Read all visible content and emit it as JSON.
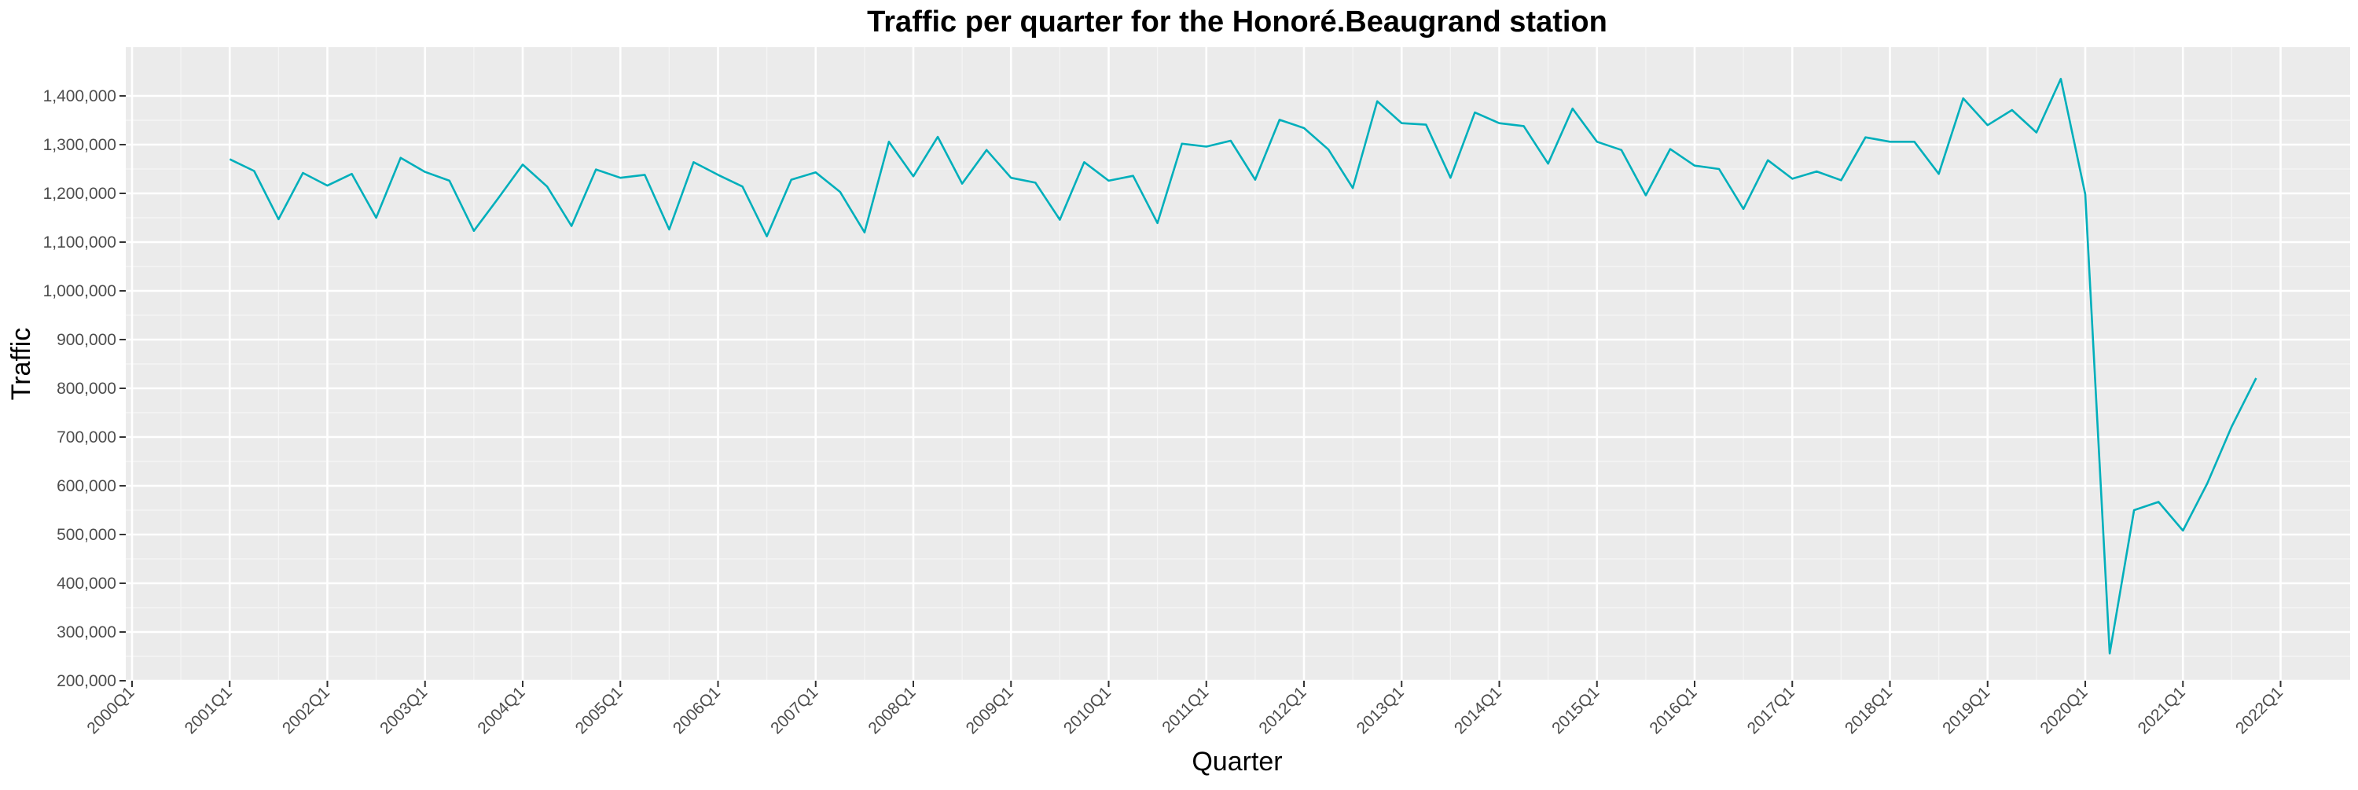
{
  "chart_data": {
    "type": "line",
    "title": "Traffic per quarter for the Honoré.Beaugrand station",
    "xlabel": "Quarter",
    "ylabel": "Traffic",
    "x_tick_labels": [
      "2000Q1",
      "2001Q1",
      "2002Q1",
      "2003Q1",
      "2004Q1",
      "2005Q1",
      "2006Q1",
      "2007Q1",
      "2008Q1",
      "2009Q1",
      "2010Q1",
      "2011Q1",
      "2012Q1",
      "2013Q1",
      "2014Q1",
      "2015Q1",
      "2016Q1",
      "2017Q1",
      "2018Q1",
      "2019Q1",
      "2020Q1",
      "2021Q1",
      "2022Q1"
    ],
    "y_tick_labels": [
      "200,000",
      "300,000",
      "400,000",
      "500,000",
      "600,000",
      "700,000",
      "800,000",
      "900,000",
      "1,000,000",
      "1,100,000",
      "1,200,000",
      "1,300,000",
      "1,400,000"
    ],
    "ylim": [
      200000,
      1450000
    ],
    "grid": true,
    "series": [
      {
        "color": "#00AFBB",
        "x": [
          "2001Q1",
          "2001Q2",
          "2001Q3",
          "2001Q4",
          "2002Q1",
          "2002Q2",
          "2002Q3",
          "2002Q4",
          "2003Q1",
          "2003Q2",
          "2003Q3",
          "2003Q4",
          "2004Q1",
          "2004Q2",
          "2004Q3",
          "2004Q4",
          "2005Q1",
          "2005Q2",
          "2005Q3",
          "2005Q4",
          "2006Q1",
          "2006Q2",
          "2006Q3",
          "2006Q4",
          "2007Q1",
          "2007Q2",
          "2007Q3",
          "2007Q4",
          "2008Q1",
          "2008Q2",
          "2008Q3",
          "2008Q4",
          "2009Q1",
          "2009Q2",
          "2009Q3",
          "2009Q4",
          "2010Q1",
          "2010Q2",
          "2010Q3",
          "2010Q4",
          "2011Q1",
          "2011Q2",
          "2011Q3",
          "2011Q4",
          "2012Q1",
          "2012Q2",
          "2012Q3",
          "2012Q4",
          "2013Q1",
          "2013Q2",
          "2013Q3",
          "2013Q4",
          "2014Q1",
          "2014Q2",
          "2014Q3",
          "2014Q4",
          "2015Q1",
          "2015Q2",
          "2015Q3",
          "2015Q4",
          "2016Q1",
          "2016Q2",
          "2016Q3",
          "2016Q4",
          "2017Q1",
          "2017Q2",
          "2017Q3",
          "2017Q4",
          "2018Q1",
          "2018Q2",
          "2018Q3",
          "2018Q4",
          "2019Q1",
          "2019Q2",
          "2019Q3",
          "2019Q4",
          "2020Q1",
          "2020Q2",
          "2020Q3",
          "2020Q4",
          "2021Q1",
          "2021Q2",
          "2021Q3",
          "2021Q4"
        ],
        "values": [
          1270000,
          1246000,
          1147000,
          1242000,
          1216000,
          1240000,
          1150000,
          1273000,
          1244000,
          1226000,
          1123000,
          1190000,
          1259000,
          1214000,
          1133000,
          1249000,
          1232000,
          1238000,
          1126000,
          1264000,
          1238000,
          1214000,
          1112000,
          1228000,
          1243000,
          1203000,
          1120000,
          1306000,
          1235000,
          1316000,
          1220000,
          1289000,
          1232000,
          1222000,
          1146000,
          1264000,
          1226000,
          1236000,
          1139000,
          1302000,
          1296000,
          1308000,
          1228000,
          1351000,
          1334000,
          1290000,
          1211000,
          1389000,
          1344000,
          1341000,
          1232000,
          1366000,
          1344000,
          1338000,
          1261000,
          1374000,
          1306000,
          1289000,
          1196000,
          1291000,
          1257000,
          1250000,
          1168000,
          1268000,
          1230000,
          1245000,
          1227000,
          1315000,
          1306000,
          1306000,
          1240000,
          1395000,
          1340000,
          1371000,
          1325000,
          1435000,
          1198000,
          256000,
          550000,
          567000,
          508000,
          605000,
          722000,
          821000
        ]
      }
    ]
  }
}
